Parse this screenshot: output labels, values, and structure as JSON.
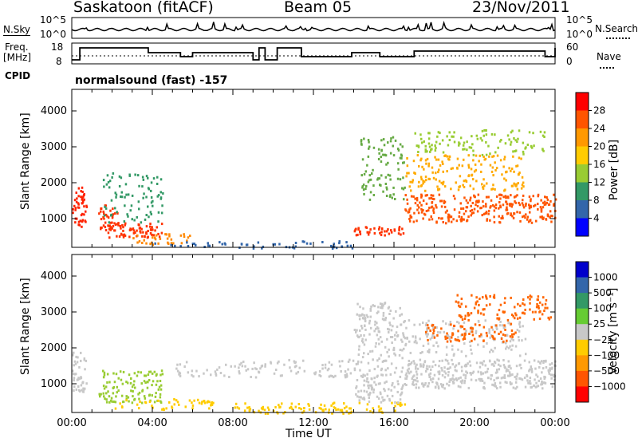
{
  "header": {
    "station": "Saskatoon (fitACF)",
    "beam": "Beam 05",
    "date": "23/Nov/2011"
  },
  "top_panels": {
    "nsky_label": "N.Sky",
    "nsky_ticks": [
      "10^5",
      "10^0"
    ],
    "nsearch_label": "N.Search",
    "nsearch_ticks": [
      "10^5",
      "10^0"
    ],
    "freq_label_1": "Freq.",
    "freq_label_2": "[MHz]",
    "freq_ticks": [
      "18",
      "8"
    ],
    "nave_label": "Nave",
    "nave_ticks": [
      "60",
      "0"
    ],
    "cpid_label": "CPID",
    "cpid_text": "normalsound (fast) -157"
  },
  "chart_data": [
    {
      "type": "heatmap",
      "name": "power",
      "ylabel": "Slant Range [km]",
      "yticks": [
        "1000",
        "2000",
        "3000",
        "4000"
      ],
      "ylim": [
        200,
        4600
      ],
      "xlim_hours": [
        0,
        24
      ],
      "colorbar_label": "Power [dB]",
      "colorbar_ticks": [
        "28",
        "24",
        "20",
        "16",
        "12",
        "8",
        "4"
      ],
      "colorbar_colors": [
        "#ff0000",
        "#ff5500",
        "#ff9900",
        "#ffcc00",
        "#99cc33",
        "#339966",
        "#3366aa",
        "#0000ff"
      ],
      "features": [
        {
          "t0": 0.0,
          "t1": 0.7,
          "r0": 800,
          "r1": 1900,
          "color": "#ff2200",
          "density": 0.8
        },
        {
          "t0": 1.3,
          "t1": 2.3,
          "r0": 700,
          "r1": 1400,
          "color": "#ff3300",
          "density": 0.7
        },
        {
          "t0": 1.7,
          "t1": 4.5,
          "r0": 500,
          "r1": 900,
          "color": "#ff3300",
          "density": 0.75
        },
        {
          "t0": 1.5,
          "t1": 4.5,
          "r0": 900,
          "r1": 2300,
          "color": "#339966",
          "density": 0.25
        },
        {
          "t0": 3.0,
          "t1": 6.0,
          "r0": 300,
          "r1": 600,
          "color": "#ff8800",
          "density": 0.45
        },
        {
          "t0": 4.0,
          "t1": 14.0,
          "r0": 200,
          "r1": 400,
          "color": "#3366aa",
          "density": 0.35
        },
        {
          "t0": 14.0,
          "t1": 16.5,
          "r0": 550,
          "r1": 800,
          "color": "#ff3300",
          "density": 0.8
        },
        {
          "t0": 14.3,
          "t1": 16.5,
          "r0": 1500,
          "r1": 3300,
          "color": "#66aa44",
          "density": 0.3
        },
        {
          "t0": 16.5,
          "t1": 24.0,
          "r0": 900,
          "r1": 1700,
          "color": "#ff5500",
          "density": 0.6
        },
        {
          "t0": 16.5,
          "t1": 22.5,
          "r0": 1800,
          "r1": 2800,
          "color": "#ffaa00",
          "density": 0.35
        },
        {
          "t0": 17.0,
          "t1": 23.5,
          "r0": 2800,
          "r1": 3500,
          "color": "#99cc33",
          "density": 0.3
        }
      ]
    },
    {
      "type": "heatmap",
      "name": "velocity",
      "ylabel": "Slant Range [km]",
      "yticks": [
        "1000",
        "2000",
        "3000",
        "4000"
      ],
      "ylim": [
        200,
        4600
      ],
      "xlim_hours": [
        0,
        24
      ],
      "xticks": [
        "00:00",
        "04:00",
        "08:00",
        "12:00",
        "16:00",
        "20:00",
        "00:00"
      ],
      "xlabel": "Time UT",
      "colorbar_label": "Velocity [m s⁻¹]",
      "colorbar_ticks": [
        "1000",
        "500",
        "100",
        "25",
        "−25",
        "−100",
        "−500",
        "−1000"
      ],
      "colorbar_colors": [
        "#0000cc",
        "#3366aa",
        "#339966",
        "#66cc33",
        "#c8c8c8",
        "#ffcc00",
        "#ff9900",
        "#ff5500",
        "#ff0000"
      ],
      "features": [
        {
          "t0": 0.0,
          "t1": 0.7,
          "r0": 800,
          "r1": 1900,
          "color": "#c8c8c8",
          "density": 0.7
        },
        {
          "t0": 1.3,
          "t1": 4.5,
          "r0": 500,
          "r1": 1400,
          "color": "#99cc33",
          "density": 0.5
        },
        {
          "t0": 2.0,
          "t1": 7.0,
          "r0": 300,
          "r1": 600,
          "color": "#ffcc00",
          "density": 0.4
        },
        {
          "t0": 5.0,
          "t1": 14.0,
          "r0": 1200,
          "r1": 1700,
          "color": "#c8c8c8",
          "density": 0.3
        },
        {
          "t0": 8.0,
          "t1": 16.5,
          "r0": 200,
          "r1": 500,
          "color": "#ffcc00",
          "density": 0.5
        },
        {
          "t0": 14.0,
          "t1": 16.5,
          "r0": 500,
          "r1": 3300,
          "color": "#c8c8c8",
          "density": 0.45
        },
        {
          "t0": 16.5,
          "t1": 24.0,
          "r0": 900,
          "r1": 1700,
          "color": "#c8c8c8",
          "density": 0.7
        },
        {
          "t0": 16.5,
          "t1": 22.5,
          "r0": 1800,
          "r1": 2800,
          "color": "#c8c8c8",
          "density": 0.3
        },
        {
          "t0": 17.5,
          "t1": 22.0,
          "r0": 2200,
          "r1": 2700,
          "color": "#ff6600",
          "density": 0.45
        },
        {
          "t0": 19.0,
          "t1": 23.8,
          "r0": 2800,
          "r1": 3500,
          "color": "#ff6600",
          "density": 0.4
        }
      ]
    }
  ]
}
